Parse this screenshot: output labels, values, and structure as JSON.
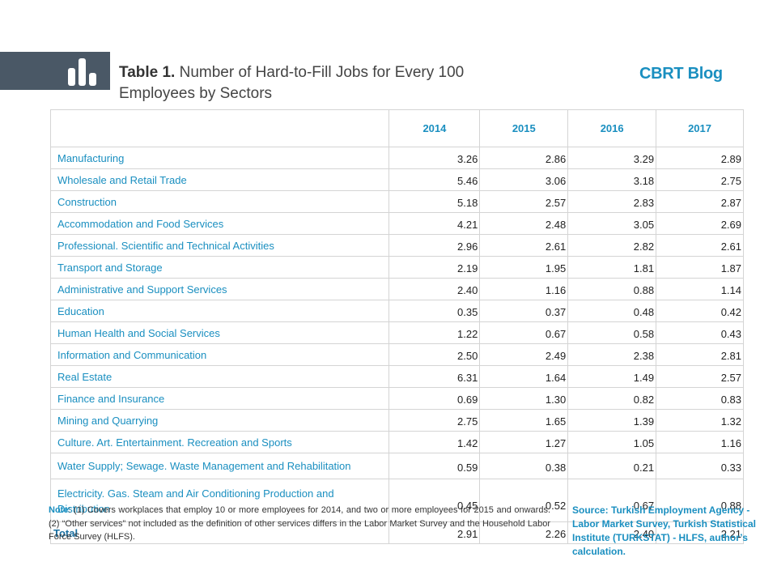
{
  "header": {
    "title_prefix": "Table 1.",
    "title_text": " Number of Hard-to-Fill Jobs for Every 100 Employees by Sectors",
    "brand": "CBRT Blog",
    "logo_icon": "bar-chart-icon"
  },
  "table": {
    "columns": [
      "",
      "2014",
      "2015",
      "2016",
      "2017"
    ],
    "rows": [
      {
        "sector": "Manufacturing",
        "values": [
          "3.26",
          "2.86",
          "3.29",
          "2.89"
        ]
      },
      {
        "sector": "Wholesale and Retail Trade",
        "values": [
          "5.46",
          "3.06",
          "3.18",
          "2.75"
        ]
      },
      {
        "sector": "Construction",
        "values": [
          "5.18",
          "2.57",
          "2.83",
          "2.87"
        ]
      },
      {
        "sector": "Accommodation and Food Services",
        "values": [
          "4.21",
          "2.48",
          "3.05",
          "2.69"
        ]
      },
      {
        "sector": "Professional. Scientific and Technical Activities",
        "values": [
          "2.96",
          "2.61",
          "2.82",
          "2.61"
        ]
      },
      {
        "sector": "Transport and Storage",
        "values": [
          "2.19",
          "1.95",
          "1.81",
          "1.87"
        ]
      },
      {
        "sector": "Administrative and Support Services",
        "values": [
          "2.40",
          "1.16",
          "0.88",
          "1.14"
        ]
      },
      {
        "sector": "Education",
        "values": [
          "0.35",
          "0.37",
          "0.48",
          "0.42"
        ]
      },
      {
        "sector": "Human Health and Social Services",
        "values": [
          "1.22",
          "0.67",
          "0.58",
          "0.43"
        ]
      },
      {
        "sector": "Information and Communication",
        "values": [
          "2.50",
          "2.49",
          "2.38",
          "2.81"
        ]
      },
      {
        "sector": "Real Estate",
        "values": [
          "6.31",
          "1.64",
          "1.49",
          "2.57"
        ]
      },
      {
        "sector": "Finance and Insurance",
        "values": [
          "0.69",
          "1.30",
          "0.82",
          "0.83"
        ]
      },
      {
        "sector": "Mining and Quarrying",
        "values": [
          "2.75",
          "1.65",
          "1.39",
          "1.32"
        ]
      },
      {
        "sector": "Culture. Art. Entertainment. Recreation and Sports",
        "values": [
          "1.42",
          "1.27",
          "1.05",
          "1.16"
        ]
      },
      {
        "sector": "Water Supply; Sewage. Waste Management and Rehabilitation",
        "values": [
          "0.59",
          "0.38",
          "0.21",
          "0.33"
        ]
      },
      {
        "sector": "Electricity. Gas. Steam and Air Conditioning Production and Distribution",
        "values": [
          "0.45",
          "0.52",
          "0.67",
          "0.88"
        ]
      }
    ],
    "total": {
      "sector": "Total",
      "values": [
        "2.91",
        "2.26",
        "2.40",
        "2.21"
      ]
    }
  },
  "note": {
    "label": "Note",
    "text": ": (1) Covers workplaces that employ 10 or more employees for 2014, and two or more employees for 2015 and onwards.(2) “Other services” not included as the definition of other services differs in the Labor Market Survey and the Household Labor Force Survey (HLFS)."
  },
  "source": {
    "label": "Source:",
    "text": " Turkish Employment Agency - Labor Market Survey, Turkish Statistical Institute (TURKSTAT) - HLFS, author’s calculation."
  },
  "colors": {
    "accent": "#1a8fc0",
    "logo_bg": "#4a5866"
  }
}
